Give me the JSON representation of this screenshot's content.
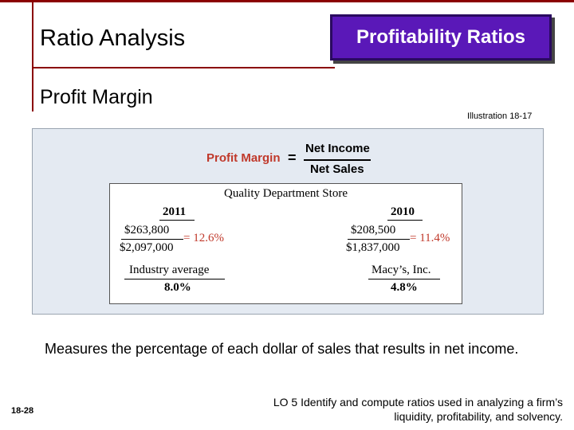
{
  "header": {
    "title": "Ratio Analysis",
    "badge": "Profitability Ratios",
    "subtitle": "Profit Margin",
    "illustration": "Illustration 18-17",
    "accent_color": "#8b0000",
    "badge_color": "#5a18b8"
  },
  "formula": {
    "label": "Profit Margin",
    "equals": "=",
    "numerator": "Net Income",
    "denominator": "Net Sales"
  },
  "calculation": {
    "company": "Quality Department Store",
    "columns": [
      {
        "year": "2011",
        "numerator": "$263,800",
        "denominator": "$2,097,000",
        "result": "= 12.6%",
        "comparison_label": "Industry average",
        "comparison_value": "8.0%"
      },
      {
        "year": "2010",
        "numerator": "$208,500",
        "denominator": "$1,837,000",
        "result": "= 11.4%",
        "comparison_label": "Macy’s, Inc.",
        "comparison_value": "4.8%"
      }
    ]
  },
  "description": "Measures the percentage of each dollar of sales that results in net income.",
  "footer": {
    "page": "18-28",
    "learning_objective": "LO 5  Identify and compute ratios used in analyzing a firm’s liquidity, profitability, and solvency."
  }
}
